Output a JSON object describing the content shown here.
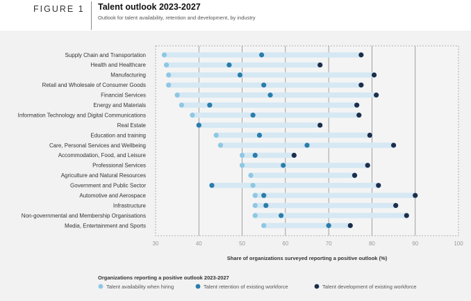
{
  "figure_label": "FIGURE 1",
  "title": "Talent outlook 2023-2027",
  "subtitle": "Outlook for talent availability, retention and development, by industry",
  "colors": {
    "availability": "#8ec7e3",
    "retention": "#2a7dab",
    "development": "#1b2f4d",
    "range_band": "#d5e8f3",
    "grid": "#8a8a8a",
    "panel_bg": "#f2f2f2"
  },
  "chart_data": {
    "type": "dot-range",
    "title": "Talent outlook 2023-2027",
    "xlabel": "Share of organizations surveyed reporting a positive outlook (%)",
    "xlim": [
      30,
      100
    ],
    "xticks": [
      30,
      40,
      50,
      60,
      70,
      80,
      90,
      100
    ],
    "categories": [
      "Supply Chain and Transportation",
      "Health and Healthcare",
      "Manufacturing",
      "Retail and Wholesale of Consumer Goods",
      "Financial Services",
      "Energy and Materials",
      "Information Technology and Digital Communications",
      "Real Estate",
      "Education and training",
      "Care, Personal Services and Wellbeing",
      "Accommodation, Food, and Leisure",
      "Professional Services",
      "Agriculture and Natural Resources",
      "Government and Public Sector",
      "Automotive and Aerospace",
      "Infrastructure",
      "Non-governmental and Membership Organisations",
      "Media, Entertainment and Sports"
    ],
    "series": [
      {
        "name": "Talent availability when hiring",
        "color": "#8ec7e3",
        "values": [
          32,
          32.5,
          33,
          33,
          35,
          36,
          38.5,
          40,
          44,
          45,
          50,
          50,
          52,
          52.5,
          53,
          53,
          53,
          55
        ]
      },
      {
        "name": "Talent retention of existing workforce",
        "color": "#2a7dab",
        "values": [
          54.5,
          47,
          49.5,
          55,
          56.5,
          42.5,
          52.5,
          40,
          54,
          65,
          53,
          59.5,
          76,
          43,
          55,
          55.5,
          59,
          70
        ]
      },
      {
        "name": "Talent development of existing workforce",
        "color": "#1b2f4d",
        "values": [
          77.5,
          68,
          80.5,
          77.5,
          81,
          76.5,
          77,
          68,
          79.5,
          85,
          62,
          79,
          76,
          81.5,
          90,
          85.5,
          88,
          75
        ]
      }
    ],
    "legend": {
      "title": "Organizations reporting a positive outlook 2023-2027",
      "position": "bottom-left"
    },
    "grid": true
  }
}
